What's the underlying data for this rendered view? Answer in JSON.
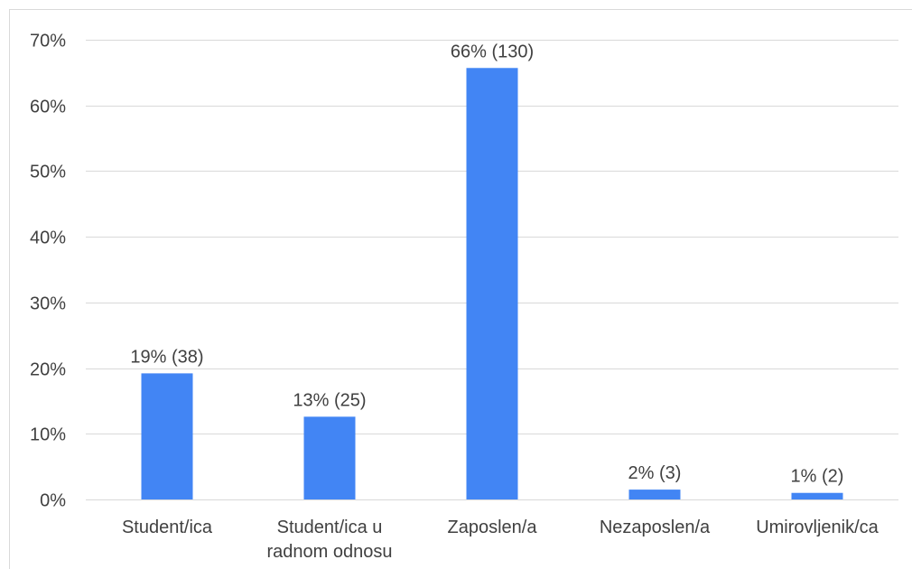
{
  "chart_data": {
    "type": "bar",
    "title": "",
    "xlabel": "",
    "ylabel": "",
    "categories": [
      [
        "Student/ica"
      ],
      [
        "Student/ica u",
        "radnom odnosu"
      ],
      [
        "Zaposlen/a"
      ],
      [
        "Nezaposlen/a"
      ],
      [
        "Umirovljenik/ca"
      ]
    ],
    "values": [
      19.2,
      12.6,
      65.7,
      1.5,
      1.0
    ],
    "data_labels": [
      "19% (38)",
      "13% (25)",
      "66% (130)",
      "2% (3)",
      "1% (2)"
    ],
    "ylim": [
      0,
      70
    ],
    "yticks": [
      0,
      10,
      20,
      30,
      40,
      50,
      60,
      70
    ],
    "ytick_labels": [
      "0%",
      "10%",
      "20%",
      "30%",
      "40%",
      "50%",
      "60%",
      "70%"
    ],
    "grid": true,
    "legend": "none",
    "colors": {
      "bar": "#4285f4",
      "grid": "#d9d9d9",
      "text": "#404040"
    }
  }
}
